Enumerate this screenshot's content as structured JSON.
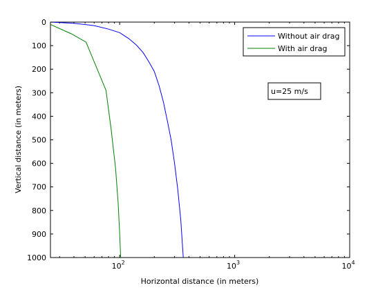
{
  "chart_data": {
    "type": "line",
    "title": "",
    "xlabel": "Horizontal distance (in meters)",
    "ylabel": "Vertical distance (in meters)",
    "xscale": "log",
    "xlim": [
      25,
      10000
    ],
    "ylim": [
      0,
      1000
    ],
    "y_axis_inverted": true,
    "grid": false,
    "x_ticks": [
      {
        "value": 100,
        "base": "10",
        "exp": "2"
      },
      {
        "value": 1000,
        "base": "10",
        "exp": "3"
      },
      {
        "value": 10000,
        "base": "10",
        "exp": "4"
      }
    ],
    "y_ticks": [
      "0",
      "100",
      "200",
      "300",
      "400",
      "500",
      "600",
      "700",
      "800",
      "900",
      "1000"
    ],
    "legend_position": "top-right",
    "series": [
      {
        "name": "Without air drag",
        "color": "#0000ff",
        "x": [
          25,
          40,
          60,
          80,
          100,
          120,
          140,
          160,
          180,
          200,
          220,
          240,
          260,
          280,
          300,
          320,
          340,
          357
        ],
        "y": [
          0,
          5,
          15,
          30,
          45,
          70,
          98,
          130,
          170,
          210,
          270,
          340,
          420,
          500,
          600,
          710,
          840,
          1000
        ]
      },
      {
        "name": "With air drag",
        "color": "#008000",
        "x": [
          25,
          38,
          51,
          76,
          84,
          92,
          97,
          100,
          102
        ],
        "y": [
          10,
          50,
          85,
          290,
          450,
          620,
          770,
          900,
          1000
        ]
      }
    ],
    "annotation": "u=25 m/s"
  }
}
